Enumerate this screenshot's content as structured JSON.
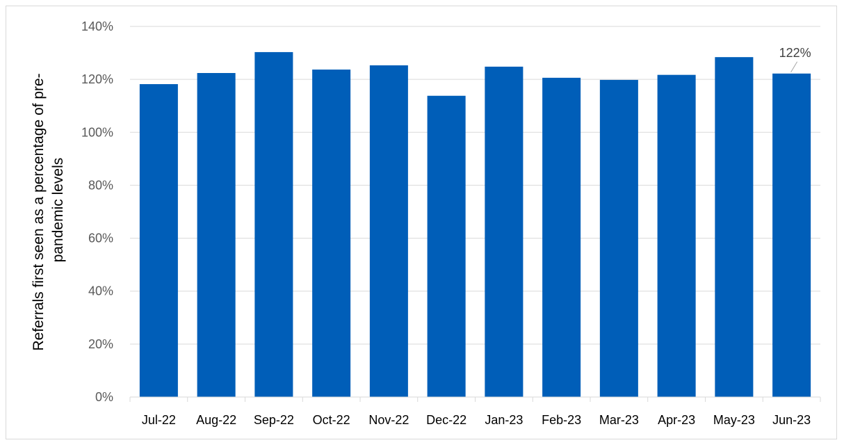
{
  "chart_data": {
    "type": "bar",
    "categories": [
      "Jul-22",
      "Aug-22",
      "Sep-22",
      "Oct-22",
      "Nov-22",
      "Dec-22",
      "Jan-23",
      "Feb-23",
      "Mar-23",
      "Apr-23",
      "May-23",
      "Jun-23"
    ],
    "values": [
      118.2,
      122.4,
      130.3,
      123.7,
      125.3,
      113.8,
      124.8,
      120.6,
      119.8,
      121.7,
      128.4,
      122.2
    ],
    "title": "",
    "xlabel": "",
    "ylabel_lines": [
      "Referrals first seen as a percentage of pre-",
      "pandemic levels"
    ],
    "ylim": [
      0,
      140
    ],
    "y_ticks": [
      0,
      20,
      40,
      60,
      80,
      100,
      120,
      140
    ],
    "y_tick_labels": [
      "0%",
      "20%",
      "40%",
      "60%",
      "80%",
      "100%",
      "120%",
      "140%"
    ],
    "grid": true,
    "legend": "none",
    "bar_color": "#005EB8",
    "data_labels": [
      {
        "category": "Jun-23",
        "text": "122%"
      }
    ]
  }
}
